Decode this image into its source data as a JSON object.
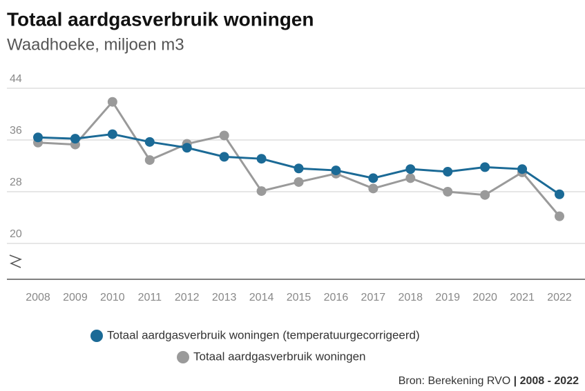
{
  "chart_data": {
    "type": "line",
    "title": "Totaal aardgasverbruik woningen",
    "subtitle": "Waadhoeke, miljoen m3",
    "categories": [
      "2008",
      "2009",
      "2010",
      "2011",
      "2012",
      "2013",
      "2014",
      "2015",
      "2016",
      "2017",
      "2018",
      "2019",
      "2020",
      "2021",
      "2022"
    ],
    "series": [
      {
        "name": "Totaal aardgasverbruik woningen (temperatuurgecorrigeerd)",
        "color": "#1b6a96",
        "values": [
          36.4,
          36.2,
          36.9,
          35.7,
          34.8,
          33.4,
          33.1,
          31.6,
          31.3,
          30.1,
          31.5,
          31.1,
          31.8,
          31.5,
          27.6
        ]
      },
      {
        "name": "Totaal aardgasverbruik woningen",
        "color": "#9a9a9a",
        "values": [
          35.6,
          35.3,
          41.9,
          32.9,
          35.4,
          36.7,
          28.1,
          29.5,
          30.8,
          28.5,
          30.1,
          28.0,
          27.5,
          31.0,
          24.2
        ]
      }
    ],
    "ylim": [
      20,
      44
    ],
    "yticks": [
      20,
      28,
      36,
      44
    ],
    "grid": true,
    "source": "Bron: Berekening RVO",
    "source_period": "| 2008 - 2022"
  }
}
